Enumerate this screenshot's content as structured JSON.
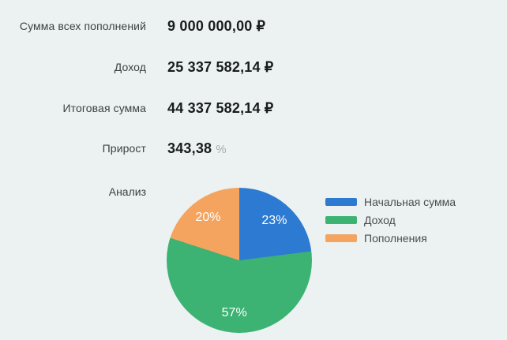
{
  "background": "#ecf2f1",
  "stats": [
    {
      "label": "Сумма всех пополнений",
      "value": "9 000 000,00",
      "unit": "₽"
    },
    {
      "label": "Доход",
      "value": "25 337 582,14",
      "unit": "₽"
    },
    {
      "label": "Итоговая сумма",
      "value": "44 337 582,14",
      "unit": "₽"
    },
    {
      "label": "Прирост",
      "value": "343,38",
      "unit": "%"
    }
  ],
  "analysis_label": "Анализ",
  "chart_data": {
    "type": "pie",
    "title": "Анализ",
    "labels": [
      "Начальная сумма",
      "Доход",
      "Пополнения"
    ],
    "values": [
      23,
      57,
      20
    ],
    "colors": [
      "#2d7ad2",
      "#3cb273",
      "#f4a45f"
    ],
    "slice_label_suffix": "%",
    "slice_label_color": "#ffffff",
    "legend_position": "right",
    "start_angle_deg": 0,
    "direction": "clockwise"
  }
}
